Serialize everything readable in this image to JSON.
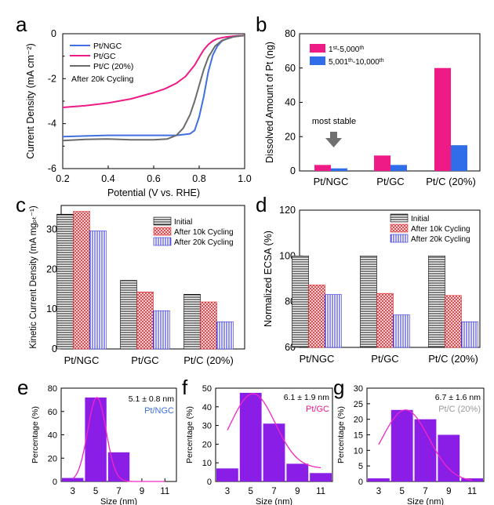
{
  "panel_letters": [
    "a",
    "b",
    "c",
    "d",
    "e",
    "f",
    "g"
  ],
  "colors": {
    "blue": "#3f6fe0",
    "magenta": "#ee1a86",
    "gray": "#6b6b6b",
    "pink_bar": "#ee1a86",
    "blue_bar": "#2f6ee8",
    "hatch_red": "#e4232a",
    "hatch_blue": "#2b2ad8",
    "purple": "#8a1ee6",
    "curve": "#f027c8"
  },
  "chart_data": [
    {
      "id": "a",
      "type": "line",
      "xlabel": "Potential (V vs. RHE)",
      "ylabel": "Current Density (mA cm⁻²)",
      "xlim": [
        0.2,
        1.0
      ],
      "ylim": [
        -6,
        0
      ],
      "xticks": [
        "0.2",
        "0.4",
        "0.6",
        "0.8",
        "1.0"
      ],
      "yticks": [
        "0",
        "-2",
        "-4",
        "-6"
      ],
      "annotation": "After 20k Cycling",
      "series": [
        {
          "name": "Pt/NGC",
          "color": "#3f6fe0",
          "x": [
            0.2,
            0.3,
            0.4,
            0.5,
            0.6,
            0.7,
            0.76,
            0.78,
            0.8,
            0.82,
            0.84,
            0.86,
            0.88,
            0.9,
            0.93,
            0.96,
            1.0
          ],
          "y": [
            -4.58,
            -4.55,
            -4.52,
            -4.52,
            -4.52,
            -4.52,
            -4.45,
            -4.3,
            -3.7,
            -2.8,
            -1.7,
            -0.95,
            -0.55,
            -0.32,
            -0.18,
            -0.1,
            -0.08
          ]
        },
        {
          "name": "Pt/GC",
          "color": "#ee1a86",
          "x": [
            0.2,
            0.3,
            0.4,
            0.5,
            0.6,
            0.65,
            0.7,
            0.74,
            0.78,
            0.8,
            0.82,
            0.84,
            0.86,
            0.88,
            0.92,
            0.96,
            1.0
          ],
          "y": [
            -3.28,
            -3.2,
            -3.08,
            -2.9,
            -2.62,
            -2.45,
            -2.2,
            -1.9,
            -1.4,
            -1.05,
            -0.72,
            -0.48,
            -0.32,
            -0.22,
            -0.14,
            -0.1,
            -0.08
          ]
        },
        {
          "name": "Pt/C (20%)",
          "color": "#6b6b6b",
          "x": [
            0.2,
            0.3,
            0.4,
            0.5,
            0.6,
            0.66,
            0.7,
            0.73,
            0.76,
            0.78,
            0.8,
            0.82,
            0.84,
            0.87,
            0.9,
            0.95,
            1.0
          ],
          "y": [
            -4.75,
            -4.7,
            -4.68,
            -4.72,
            -4.72,
            -4.68,
            -4.52,
            -4.2,
            -3.6,
            -3.0,
            -2.3,
            -1.6,
            -1.05,
            -0.55,
            -0.3,
            -0.14,
            -0.08
          ]
        }
      ]
    },
    {
      "id": "b",
      "type": "bar",
      "ylabel": "Dissolved Amount of Pt (ng)",
      "categories": [
        "Pt/NGC",
        "Pt/GC",
        "Pt/C (20%)"
      ],
      "ylim": [
        0,
        80
      ],
      "yticks": [
        "0",
        "20",
        "40",
        "60",
        "80"
      ],
      "annotation": "most stable",
      "series": [
        {
          "name_base": "1",
          "name_sup": "st",
          "name_mid": "-5,000",
          "name_sup2": "th",
          "name": "1st-5,000th",
          "color": "#ee1a86",
          "values": [
            3.5,
            9,
            60
          ]
        },
        {
          "name_base": "5,001",
          "name_sup": "th",
          "name_mid": "-10,000",
          "name_sup2": "th",
          "name": "5,001th-10,000th",
          "color": "#2f6ee8",
          "values": [
            1.5,
            3.5,
            15
          ]
        }
      ]
    },
    {
      "id": "c",
      "type": "bar",
      "ylabel": "Kinetic Current Density (mA mgₚₜ⁻¹)",
      "categories": [
        "Pt/NGC",
        "Pt/GC",
        "Pt/C (20%)"
      ],
      "ylim": [
        0,
        36
      ],
      "yticks": [
        "0",
        "10",
        "20",
        "30"
      ],
      "series": [
        {
          "name": "Initial",
          "values": [
            33.8,
            17.2,
            13.7
          ]
        },
        {
          "name": "After 10k Cycling",
          "values": [
            34.5,
            14.3,
            11.8
          ]
        },
        {
          "name": "After 20k Cycling",
          "values": [
            29.6,
            9.6,
            6.8
          ]
        }
      ]
    },
    {
      "id": "d",
      "type": "bar",
      "ylabel": "Normalized ECSA (%)",
      "categories": [
        "Pt/NGC",
        "Pt/GC",
        "Pt/C (20%)"
      ],
      "ylim": [
        60,
        120
      ],
      "yticks": [
        "60",
        "80",
        "100",
        "120"
      ],
      "series": [
        {
          "name": "Initial",
          "values": [
            100,
            100,
            100
          ]
        },
        {
          "name": "After 10k Cycling",
          "values": [
            87.3,
            83.6,
            82.7
          ]
        },
        {
          "name": "After 20k Cycling",
          "values": [
            83.1,
            74.2,
            71.2
          ]
        }
      ]
    },
    {
      "id": "e",
      "type": "bar",
      "xlabel": "Size (nm)",
      "ylabel": "Percentage (%)",
      "categories": [
        "3",
        "5",
        "7",
        "9",
        "11"
      ],
      "values": [
        3,
        72,
        25,
        0,
        0
      ],
      "ylim": [
        0,
        80
      ],
      "yticks": [
        "0",
        "20",
        "40",
        "60",
        "80"
      ],
      "stat": "5.1 ± 0.8 nm",
      "label": "Pt/NGC",
      "label_color": "#3f6fe0",
      "fit": {
        "mean": 5.1,
        "sd": 0.8,
        "peak": 72
      }
    },
    {
      "id": "f",
      "type": "bar",
      "xlabel": "Size (nm)",
      "ylabel": "Percentage (%)",
      "categories": [
        "3",
        "5",
        "7",
        "9",
        "11"
      ],
      "values": [
        7,
        47.5,
        31,
        9.5,
        4.5
      ],
      "ylim": [
        0,
        50
      ],
      "yticks": [
        "0",
        "10",
        "20",
        "30",
        "40",
        "50"
      ],
      "stat": "6.1 ± 1.9 nm",
      "label": "Pt/GC",
      "label_color": "#ee1a86",
      "fit": {
        "mean": 5.2,
        "sd": 1.9,
        "peak": 47,
        "floor": 7
      }
    },
    {
      "id": "g",
      "type": "bar",
      "xlabel": "Size (nm)",
      "ylabel": "Percentage (%)",
      "categories": [
        "3",
        "5",
        "7",
        "9",
        "11"
      ],
      "values": [
        1,
        23,
        20,
        15,
        1
      ],
      "ylim": [
        0,
        30
      ],
      "yticks": [
        "0",
        "5",
        "10",
        "15",
        "20",
        "25",
        "30"
      ],
      "stat": "6.7 ± 1.6 nm",
      "label": "Pt/C (20%)",
      "label_color": "#999999",
      "fit": {
        "mean": 5.3,
        "sd": 2.0,
        "peak": 23
      }
    }
  ]
}
